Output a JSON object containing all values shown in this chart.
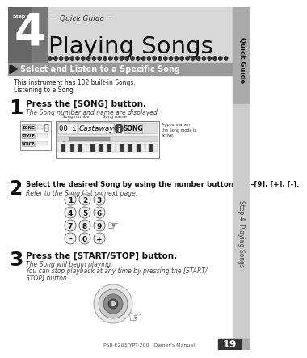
{
  "title": "Playing Songs",
  "subtitle": "— Quick Guide —",
  "section_header": "Select and Listen to a Specific Song",
  "intro_line1": "This instrument has 102 built-in Songs.",
  "intro_line2": "Listening to a Song",
  "step1_num": "1",
  "step1_title": "Press the [SONG] button.",
  "step1_sub": "The Song number and name are displayed.",
  "step2_num": "2",
  "step2_title": "Select the desired Song by using the number buttons [0]-[9], [+], [-].",
  "step2_sub": "Refer to the Song List on next page.",
  "step3_num": "3",
  "step3_title": "Press the [START/STOP] button.",
  "step3_sub1": "The Song will begin playing.",
  "step3_sub2": "You can stop playback at any time by pressing the [START/",
  "step3_sub3": "STOP] button.",
  "footer": "PSR-E203/YPT-200   Owner's Manual",
  "page_num": "19",
  "sidebar_top": "Quick Guide",
  "sidebar_bottom": "Step 4  Playing Songs",
  "bg_color": "#ffffff",
  "header_bg": "#d0d0d0",
  "section_bg": "#888888",
  "sidebar_bg_top": "#bbbbbb",
  "sidebar_bg_bot": "#d0d0d0",
  "dot_color": "#444444",
  "step_num_bg": "#111111",
  "display_label1": "Song number",
  "display_label2": "Song name",
  "display_song": "Castaway",
  "display_num": "00 i",
  "song_label": "SONG",
  "appears_text": "Appears when\nthe Song mode is\nactive.",
  "kbd_labels": [
    "SONG",
    "STYLE",
    "VOICE"
  ],
  "page_num_bg": "#444444"
}
